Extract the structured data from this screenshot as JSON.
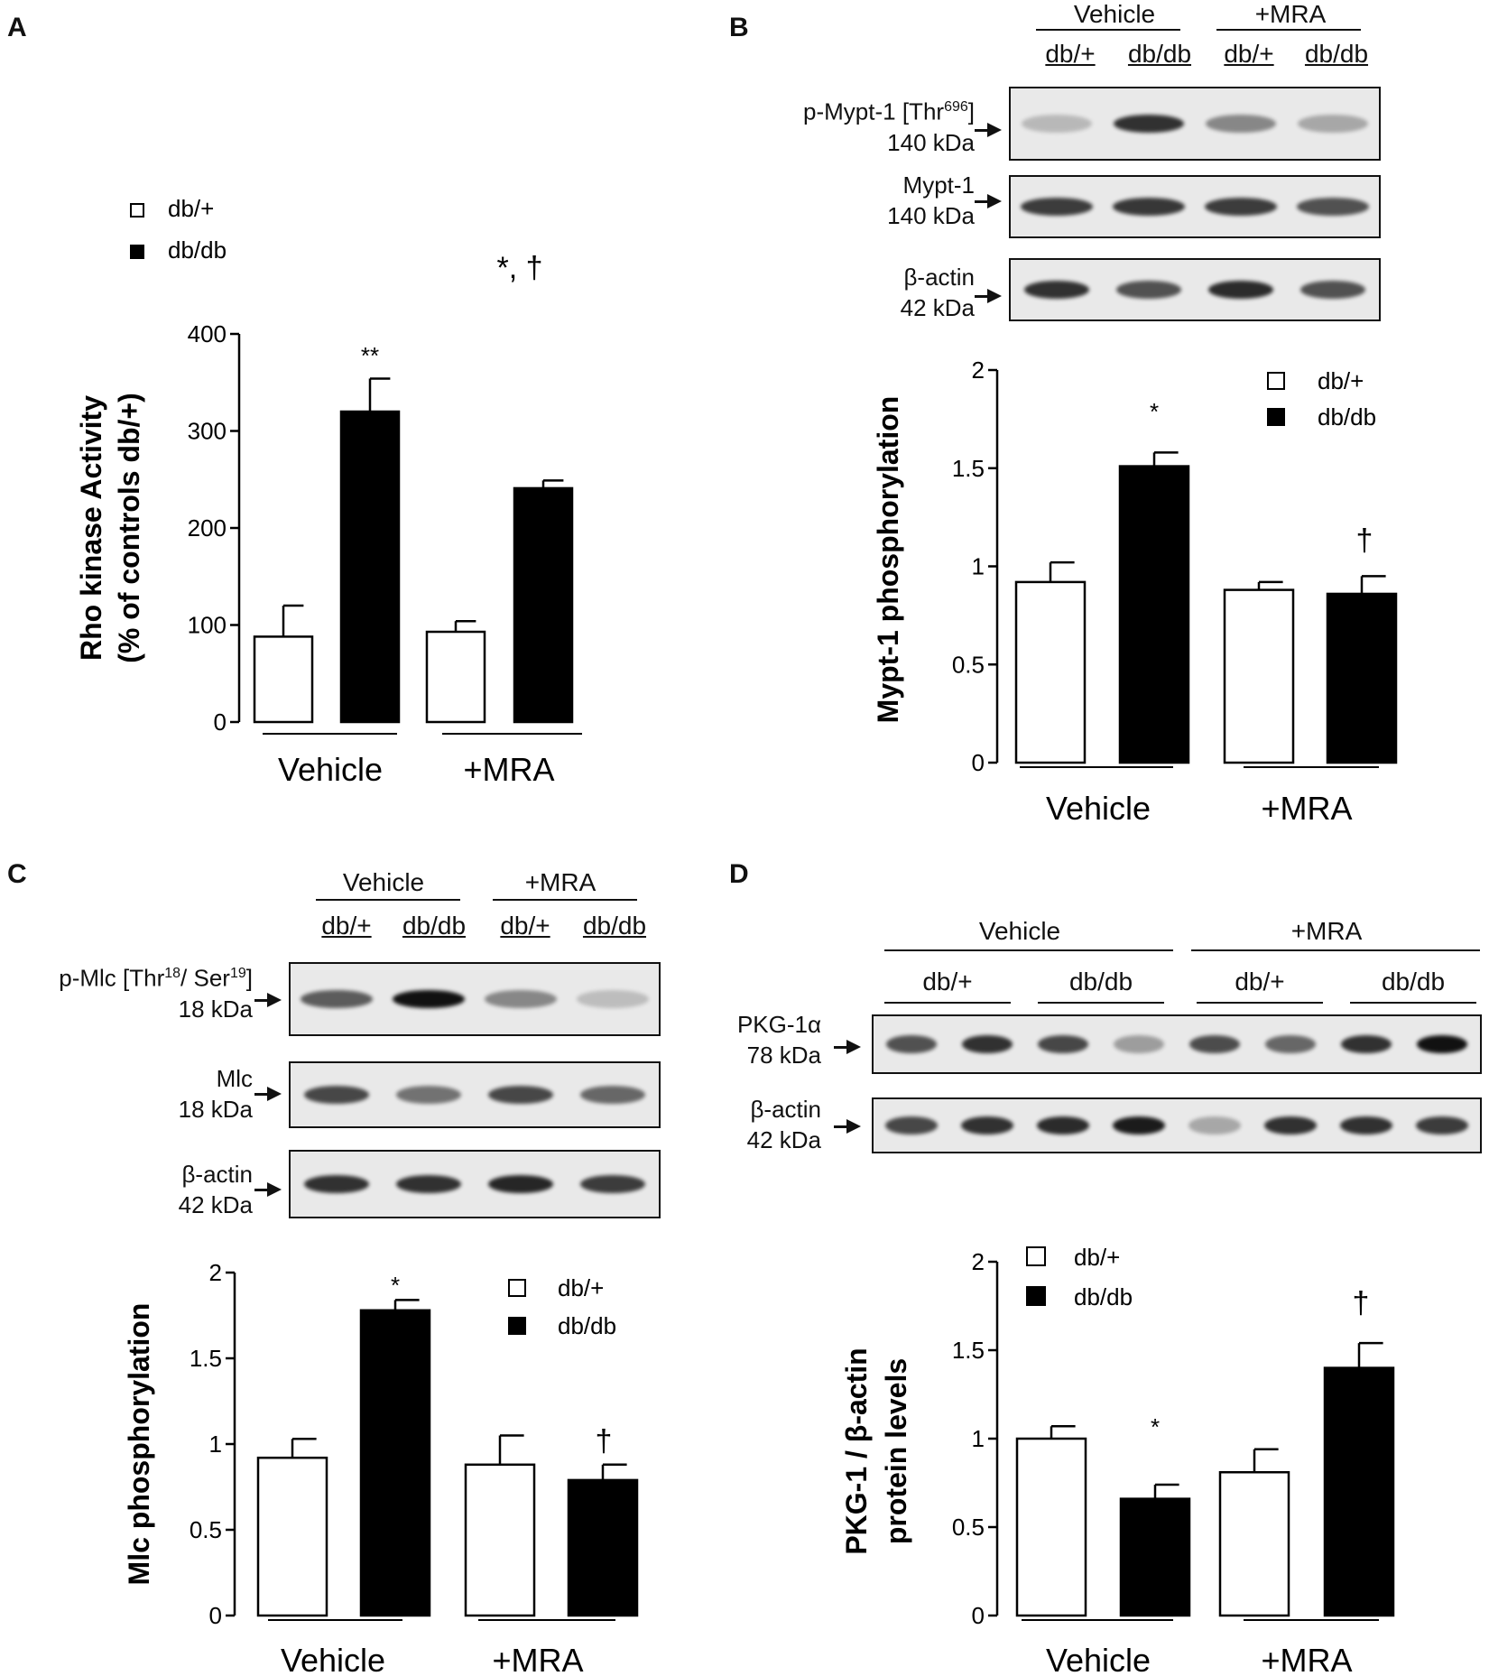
{
  "panels": {
    "A": "A",
    "B": "B",
    "C": "C",
    "D": "D"
  },
  "legend": {
    "white": "db/+",
    "black": "db/db"
  },
  "groups": [
    "Vehicle",
    "+MRA"
  ],
  "lanes": [
    "db/+",
    "db/db",
    "db/+",
    "db/db"
  ],
  "colors": {
    "db_plus": "#ffffff",
    "db_db": "#000000",
    "stroke": "#000000"
  },
  "blots": {
    "b": {
      "p_mypt": {
        "name": "p-Mypt-1 [Thr",
        "sup": "696",
        "close": "]",
        "kda": "140 kDa"
      },
      "mypt": {
        "name": "Mypt-1",
        "kda": "140 kDa"
      },
      "actin": {
        "name": "β-actin",
        "kda": "42 kDa"
      }
    },
    "c": {
      "p_mlc": {
        "name_a": "p-Mlc [Thr",
        "sup_a": "18",
        "name_b": "/ Ser",
        "sup_b": "19",
        "close": "]",
        "kda": "18 kDa"
      },
      "mlc": {
        "name": "Mlc",
        "kda": "18 kDa"
      },
      "actin": {
        "name": "β-actin",
        "kda": "42 kDa"
      }
    },
    "d": {
      "pkg": {
        "name": "PKG-1α",
        "kda": "78 kDa"
      },
      "actin": {
        "name": "β-actin",
        "kda": "42 kDa"
      }
    }
  },
  "chart_data": [
    {
      "panel": "A",
      "type": "bar",
      "ylabel": "Rho kinase Activity",
      "ylabel2": "(% of controls db/+)",
      "ylim": [
        0,
        400
      ],
      "yticks": [
        0,
        100,
        200,
        300,
        400
      ],
      "categories": [
        "Vehicle",
        "+MRA"
      ],
      "series": [
        {
          "name": "db/+",
          "values": [
            88,
            93
          ],
          "errors": [
            32,
            11
          ]
        },
        {
          "name": "db/db",
          "values": [
            320,
            241
          ],
          "errors": [
            34,
            8
          ]
        }
      ],
      "annotations": {
        "dbdb": [
          "**",
          "*, †"
        ]
      }
    },
    {
      "panel": "B",
      "type": "bar",
      "ylabel": "Mypt-1 phosphorylation",
      "ylim": [
        0,
        2
      ],
      "yticks": [
        "0",
        "0.5",
        "1",
        "1.5",
        "2"
      ],
      "categories": [
        "Vehicle",
        "+MRA"
      ],
      "series": [
        {
          "name": "db/+",
          "values": [
            0.92,
            0.88
          ],
          "errors": [
            0.1,
            0.04
          ]
        },
        {
          "name": "db/db",
          "values": [
            1.51,
            0.86
          ],
          "errors": [
            0.07,
            0.09
          ]
        }
      ],
      "annotations": {
        "dbdb": [
          "*",
          "†"
        ]
      }
    },
    {
      "panel": "C",
      "type": "bar",
      "ylabel": "Mlc phosphorylation",
      "ylim": [
        0,
        2
      ],
      "yticks": [
        "0",
        "0.5",
        "1",
        "1.5",
        "2"
      ],
      "categories": [
        "Vehicle",
        "+MRA"
      ],
      "series": [
        {
          "name": "db/+",
          "values": [
            0.92,
            0.88
          ],
          "errors": [
            0.11,
            0.17
          ]
        },
        {
          "name": "db/db",
          "values": [
            1.78,
            0.79
          ],
          "errors": [
            0.06,
            0.09
          ]
        }
      ],
      "annotations": {
        "dbdb": [
          "*",
          "†"
        ]
      }
    },
    {
      "panel": "D",
      "type": "bar",
      "ylabel": "PKG-1 / β-actin",
      "ylabel2": "protein levels",
      "ylim": [
        0,
        2
      ],
      "yticks": [
        "0",
        "0.5",
        "1",
        "1.5",
        "2"
      ],
      "categories": [
        "Vehicle",
        "+MRA"
      ],
      "series": [
        {
          "name": "db/+",
          "values": [
            1.0,
            0.81
          ],
          "errors": [
            0.07,
            0.13
          ]
        },
        {
          "name": "db/db",
          "values": [
            0.66,
            1.4
          ],
          "errors": [
            0.08,
            0.14
          ]
        }
      ],
      "annotations": {
        "dbdb": [
          "*",
          "†"
        ]
      }
    }
  ],
  "band_intensity": {
    "b_pmypt": [
      0.22,
      0.85,
      0.45,
      0.3
    ],
    "b_mypt": [
      0.8,
      0.82,
      0.8,
      0.7
    ],
    "b_actin": [
      0.85,
      0.7,
      0.88,
      0.7
    ],
    "c_pmlc": [
      0.65,
      1.0,
      0.45,
      0.2
    ],
    "c_mlc": [
      0.75,
      0.55,
      0.75,
      0.6
    ],
    "c_actin": [
      0.85,
      0.85,
      0.9,
      0.8
    ],
    "d_pkg": [
      0.7,
      0.85,
      0.75,
      0.35,
      0.72,
      0.6,
      0.85,
      1.0
    ],
    "d_actin": [
      0.75,
      0.85,
      0.88,
      0.95,
      0.3,
      0.85,
      0.85,
      0.8
    ]
  }
}
